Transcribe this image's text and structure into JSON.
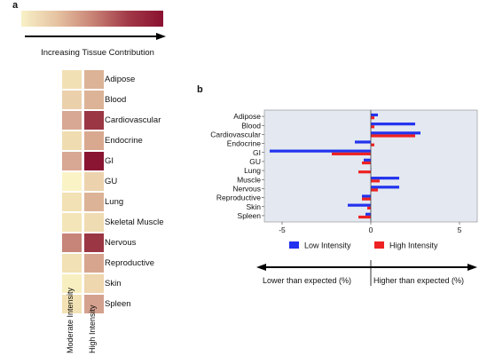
{
  "panel_a": {
    "letter": "a",
    "gradient_colors": [
      "#f7f1c6",
      "#e6c3a2",
      "#c98476",
      "#a23a48",
      "#8a1130"
    ],
    "gradient_label": "Increasing Tissue Contribution",
    "tissues": [
      "Adipose",
      "Blood",
      "Cardiovascular",
      "Endocrine",
      "GI",
      "GU",
      "Lung",
      "Skeletal Muscle",
      "Nervous",
      "Reproductive",
      "Skin",
      "Spleen"
    ],
    "columns": [
      "Moderate Intensity",
      "High Intensity"
    ],
    "heatmap_colors": {
      "moderate": [
        "#f1e0b4",
        "#ebd0ac",
        "#d8a894",
        "#efdcb1",
        "#d8a894",
        "#faf3c6",
        "#f2e1b4",
        "#f4e5b8",
        "#c78579",
        "#f2e1b4",
        "#f8efc1",
        "#f2e2b5"
      ],
      "high": [
        "#dcb396",
        "#dcb396",
        "#9b3644",
        "#d9a98f",
        "#8a1532",
        "#ecd3ad",
        "#dcb396",
        "#f0dcb2",
        "#9b3644",
        "#d7a58e",
        "#eed6ae",
        "#d4a18e"
      ]
    }
  },
  "chart_data": {
    "type": "bar",
    "orientation": "horizontal",
    "letter": "b",
    "categories": [
      "Adipose",
      "Blood",
      "Cardiovascular",
      "Endocrine",
      "GI",
      "GU",
      "Lung",
      "Muscle",
      "Nervous",
      "Reproductive",
      "Skin",
      "Spleen"
    ],
    "series": [
      {
        "name": "Low Intensity",
        "color": "#2233ee",
        "values": [
          0.4,
          2.5,
          2.8,
          -0.9,
          -5.7,
          -0.4,
          0.0,
          1.6,
          1.6,
          -0.5,
          -1.3,
          -0.3
        ]
      },
      {
        "name": "High Intensity",
        "color": "#ee2222",
        "values": [
          0.2,
          0.2,
          2.5,
          0.2,
          -2.2,
          -0.5,
          -0.7,
          0.5,
          0.4,
          -0.5,
          -0.2,
          -0.7
        ]
      }
    ],
    "xlim": [
      -6,
      6
    ],
    "xticks": [
      -5,
      0,
      5
    ],
    "plot_background": "#e3e8f1",
    "legend_position": "bottom",
    "bottom_left_label": "Lower than expected (%)",
    "bottom_right_label": "Higher than expected (%)"
  }
}
